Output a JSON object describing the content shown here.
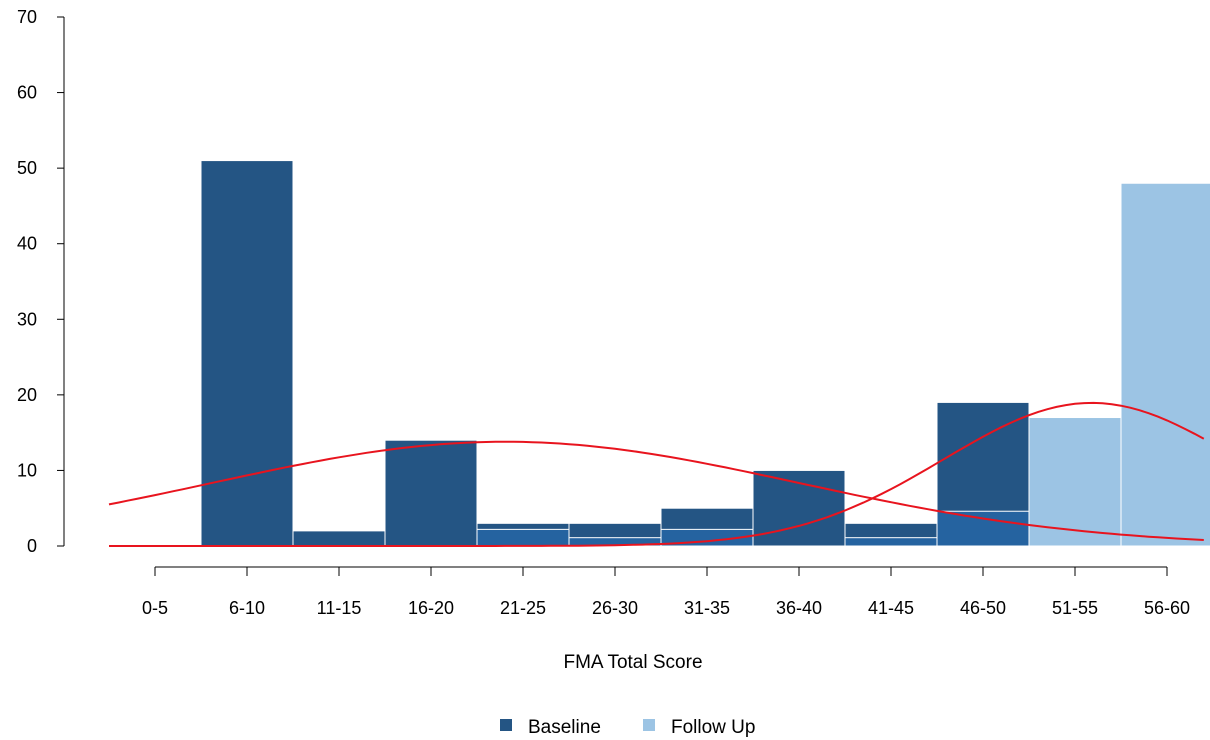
{
  "chart_data": {
    "type": "bar",
    "title": "",
    "xlabel": "FMA Total Score",
    "ylabel": "",
    "ylim": [
      0,
      70
    ],
    "yticks": [
      0,
      10,
      20,
      30,
      40,
      50,
      60,
      70
    ],
    "categories": [
      "0-5",
      "6-10",
      "11-15",
      "16-20",
      "21-25",
      "26-30",
      "31-35",
      "36-40",
      "41-45",
      "46-50",
      "51-55",
      "56-60"
    ],
    "series": [
      {
        "name": "Baseline",
        "color": "#245584",
        "values": [
          0,
          51,
          2,
          14,
          3,
          3,
          5,
          10,
          3,
          19,
          0,
          0
        ]
      },
      {
        "name": "Follow Up",
        "color": "#9cc4e4",
        "values": [
          0,
          0,
          0,
          0,
          2.2,
          1.1,
          2.2,
          0,
          1.1,
          4.6,
          17,
          48
        ]
      }
    ],
    "overlap_color": "#2563a0",
    "curves": [
      {
        "series": "Baseline",
        "type": "normal-density",
        "color": "#e8141e"
      },
      {
        "series": "Follow Up",
        "type": "normal-density",
        "color": "#e8141e"
      }
    ],
    "grid": false,
    "legend": {
      "position": "bottom",
      "items": [
        "Baseline",
        "Follow Up"
      ]
    }
  }
}
